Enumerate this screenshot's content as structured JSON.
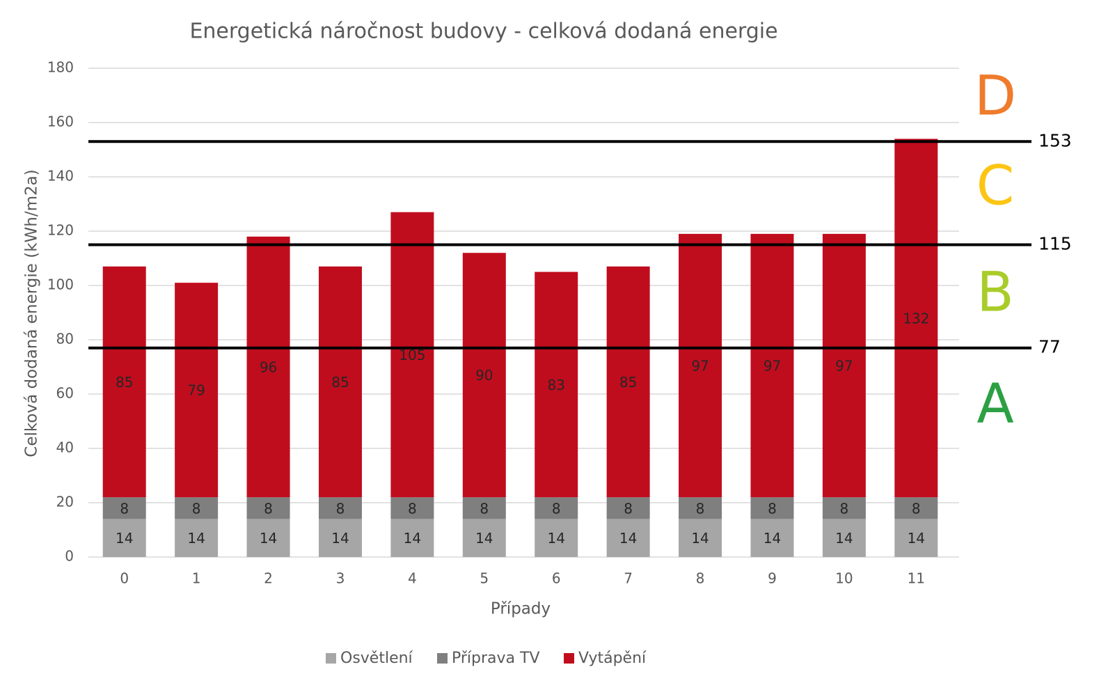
{
  "chart_data": {
    "type": "stacked-bar",
    "title": "Energetická náročnost budovy - celková dodaná energie",
    "x_label": "Případy",
    "y_label": "Celková dodaná energie (kWh/m2a)",
    "categories": [
      "0",
      "1",
      "2",
      "3",
      "4",
      "5",
      "6",
      "7",
      "8",
      "9",
      "10",
      "11"
    ],
    "series": [
      {
        "name": "Osvětlení",
        "color": "#a6a6a6",
        "values": [
          14,
          14,
          14,
          14,
          14,
          14,
          14,
          14,
          14,
          14,
          14,
          14
        ]
      },
      {
        "name": "Příprava TV",
        "color": "#7f7f7f",
        "values": [
          8,
          8,
          8,
          8,
          8,
          8,
          8,
          8,
          8,
          8,
          8,
          8
        ]
      },
      {
        "name": "Vytápění",
        "color": "#c00d1e",
        "values": [
          85,
          79,
          96,
          85,
          105,
          90,
          83,
          85,
          97,
          97,
          97,
          132
        ]
      }
    ],
    "ylim": [
      0,
      180
    ],
    "yticks": [
      0,
      20,
      40,
      60,
      80,
      100,
      120,
      140,
      160,
      180
    ],
    "grid": true,
    "legend": "bottom",
    "reference_lines": [
      77,
      115,
      153
    ],
    "classes": [
      {
        "label": "A",
        "color": "#2ca043"
      },
      {
        "label": "B",
        "color": "#a9cc2a"
      },
      {
        "label": "C",
        "color": "#fcc514"
      },
      {
        "label": "D",
        "color": "#ef7b2c"
      }
    ]
  }
}
